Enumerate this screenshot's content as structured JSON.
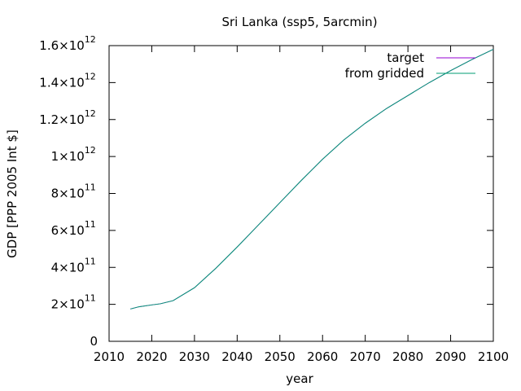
{
  "chart_data": {
    "type": "line",
    "title": "Sri Lanka (ssp5, 5arcmin)",
    "xlabel": "year",
    "ylabel": "GDP [PPP 2005 Int $]",
    "xlim": [
      2010,
      2100
    ],
    "ylim": [
      0,
      1600000000000.0
    ],
    "x_ticks": [
      2010,
      2020,
      2030,
      2040,
      2050,
      2060,
      2070,
      2080,
      2090,
      2100
    ],
    "y_ticks": [
      {
        "value": 0,
        "mantissa": "0",
        "exponent": ""
      },
      {
        "value": 200000000000.0,
        "mantissa": "2×10",
        "exponent": "11"
      },
      {
        "value": 400000000000.0,
        "mantissa": "4×10",
        "exponent": "11"
      },
      {
        "value": 600000000000.0,
        "mantissa": "6×10",
        "exponent": "11"
      },
      {
        "value": 800000000000.0,
        "mantissa": "8×10",
        "exponent": "11"
      },
      {
        "value": 1000000000000.0,
        "mantissa": "1×10",
        "exponent": "12"
      },
      {
        "value": 1200000000000.0,
        "mantissa": "1.2×10",
        "exponent": "12"
      },
      {
        "value": 1400000000000.0,
        "mantissa": "1.4×10",
        "exponent": "12"
      },
      {
        "value": 1600000000000.0,
        "mantissa": "1.6×10",
        "exponent": "12"
      }
    ],
    "grid": false,
    "legend_position": "top-right",
    "x": [
      2015,
      2017,
      2020,
      2022,
      2025,
      2030,
      2035,
      2040,
      2045,
      2050,
      2055,
      2060,
      2065,
      2070,
      2075,
      2080,
      2085,
      2090,
      2095,
      2100
    ],
    "series": [
      {
        "name": "target",
        "color": "#9400d3",
        "values": [
          175000000000.0,
          187000000000.0,
          197000000000.0,
          203000000000.0,
          220000000000.0,
          290000000000.0,
          395000000000.0,
          510000000000.0,
          630000000000.0,
          750000000000.0,
          870000000000.0,
          985000000000.0,
          1090000000000.0,
          1180000000000.0,
          1260000000000.0,
          1330000000000.0,
          1400000000000.0,
          1465000000000.0,
          1525000000000.0,
          1580000000000.0
        ]
      },
      {
        "name": "from gridded",
        "color": "#009e73",
        "values": [
          175000000000.0,
          187000000000.0,
          197000000000.0,
          203000000000.0,
          220000000000.0,
          290000000000.0,
          395000000000.0,
          510000000000.0,
          630000000000.0,
          750000000000.0,
          870000000000.0,
          985000000000.0,
          1090000000000.0,
          1180000000000.0,
          1260000000000.0,
          1330000000000.0,
          1400000000000.0,
          1465000000000.0,
          1525000000000.0,
          1580000000000.0
        ]
      }
    ]
  }
}
